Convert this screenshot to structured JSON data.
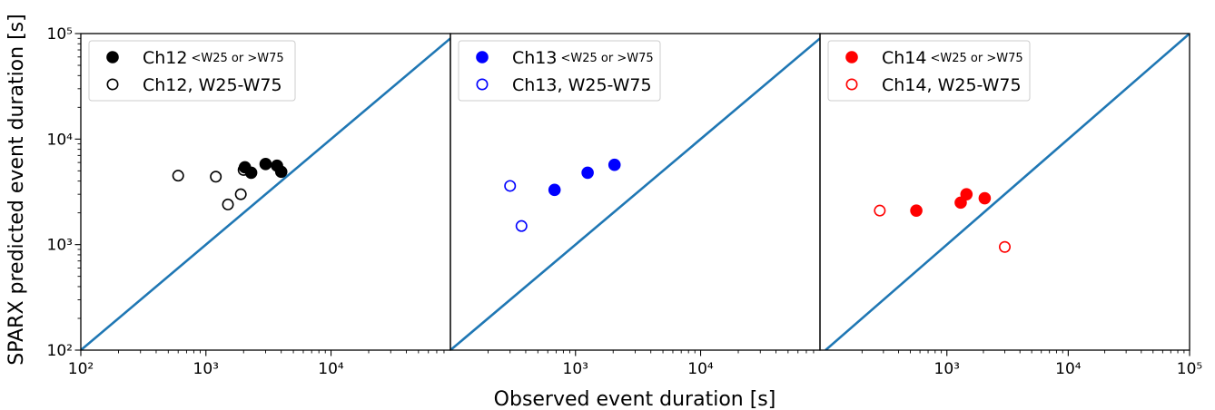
{
  "figure": {
    "xlabel": "Observed event duration [s]",
    "ylabel": "SPARX predicted event duration [s]"
  },
  "chart_data": [
    {
      "type": "scatter",
      "xscale": "log",
      "yscale": "log",
      "xlim": [
        100,
        90000
      ],
      "ylim": [
        100,
        100000
      ],
      "x_ticks": [
        {
          "value": 100,
          "label": "10²"
        },
        {
          "value": 1000,
          "label": "10³"
        },
        {
          "value": 10000,
          "label": "10⁴"
        }
      ],
      "y_ticks": [
        {
          "value": 100,
          "label": "10²"
        },
        {
          "value": 1000,
          "label": "10³"
        },
        {
          "value": 10000,
          "label": "10⁴"
        },
        {
          "value": 100000,
          "label": "10⁵"
        }
      ],
      "reference_line": "y = x",
      "legend_position": "top-left",
      "colors": {
        "marker": "#000000",
        "line": "#1f77b4"
      },
      "series": [
        {
          "name": "Ch12",
          "name_suffix": "<W25 or >W75",
          "marker": "filled",
          "points": [
            [
              2050,
              5400
            ],
            [
              2300,
              4800
            ],
            [
              3000,
              5800
            ],
            [
              3700,
              5600
            ],
            [
              4000,
              4900
            ]
          ]
        },
        {
          "name": "Ch12, W25-W75",
          "marker": "open",
          "points": [
            [
              600,
              4500
            ],
            [
              1200,
              4400
            ],
            [
              1500,
              2400
            ],
            [
              1900,
              3000
            ],
            [
              2000,
              5100
            ]
          ]
        }
      ]
    },
    {
      "type": "scatter",
      "xscale": "log",
      "yscale": "log",
      "xlim": [
        100,
        90000
      ],
      "ylim": [
        100,
        100000
      ],
      "x_ticks": [
        {
          "value": 1000,
          "label": "10³"
        },
        {
          "value": 10000,
          "label": "10⁴"
        }
      ],
      "reference_line": "y = x",
      "legend_position": "top-left",
      "colors": {
        "marker": "#0000ff",
        "line": "#1f77b4"
      },
      "series": [
        {
          "name": "Ch13",
          "name_suffix": "<W25 or >W75",
          "marker": "filled",
          "points": [
            [
              680,
              3300
            ],
            [
              1250,
              4800
            ],
            [
              2050,
              5700
            ]
          ]
        },
        {
          "name": "Ch13, W25-W75",
          "marker": "open",
          "points": [
            [
              300,
              3600
            ],
            [
              370,
              1500
            ]
          ]
        }
      ]
    },
    {
      "type": "scatter",
      "xscale": "log",
      "yscale": "log",
      "xlim": [
        90,
        100000
      ],
      "ylim": [
        100,
        100000
      ],
      "x_ticks": [
        {
          "value": 1000,
          "label": "10³"
        },
        {
          "value": 10000,
          "label": "10⁴"
        },
        {
          "value": 100000,
          "label": "10⁵"
        }
      ],
      "reference_line": "y = x",
      "legend_position": "top-left",
      "colors": {
        "marker": "#ff0000",
        "line": "#1f77b4"
      },
      "series": [
        {
          "name": "Ch14",
          "name_suffix": "<W25 or >W75",
          "marker": "filled",
          "points": [
            [
              560,
              2100
            ],
            [
              1300,
              2500
            ],
            [
              1450,
              3000
            ],
            [
              2050,
              2750
            ]
          ]
        },
        {
          "name": "Ch14, W25-W75",
          "marker": "open",
          "points": [
            [
              280,
              2100
            ],
            [
              3000,
              950
            ]
          ]
        }
      ]
    }
  ]
}
